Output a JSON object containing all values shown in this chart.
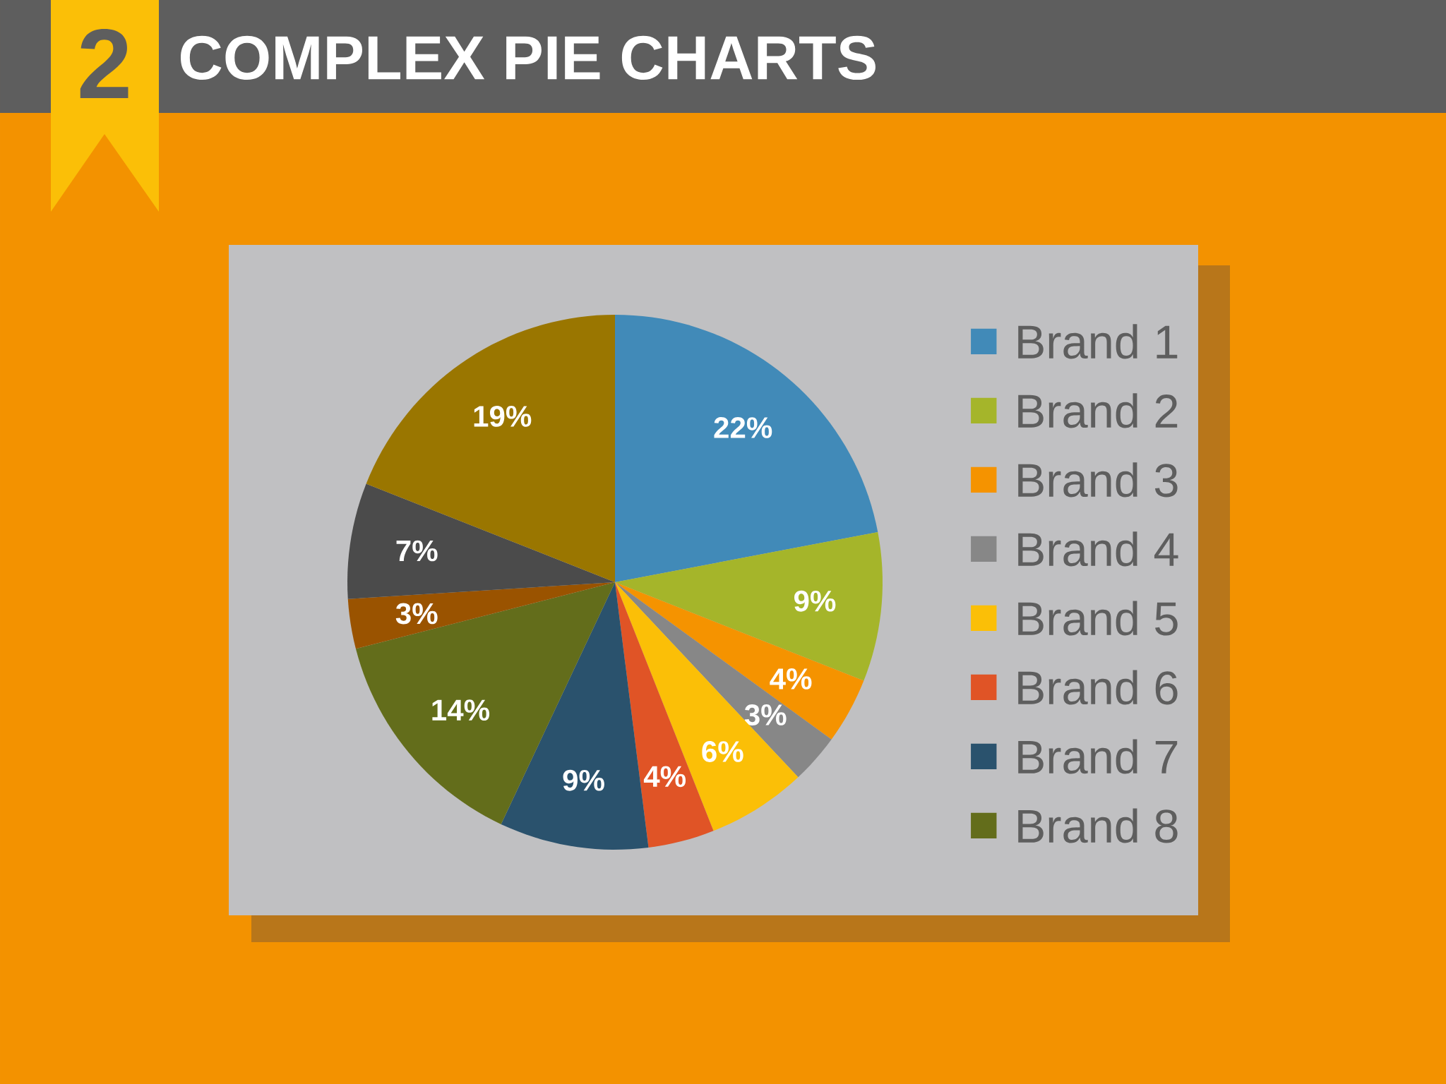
{
  "chart_data": {
    "type": "pie",
    "title": "COMPLEX PIE CHARTS",
    "annotations": [
      "2"
    ],
    "categories": [
      "Brand 1",
      "Brand 2",
      "Brand 3",
      "Brand 4",
      "Brand 5",
      "Brand 6",
      "Brand 7",
      "Brand 8",
      null,
      null,
      null
    ],
    "values": [
      22,
      9,
      4,
      3,
      6,
      4,
      9,
      14,
      3,
      7,
      19
    ],
    "value_labels": [
      "22%",
      "9%",
      "4%",
      "3%",
      "6%",
      "4%",
      "9%",
      "14%",
      "3%",
      "7%",
      "19%"
    ],
    "colors": [
      "#418ab8",
      "#a5b52a",
      "#f59300",
      "#878787",
      "#fbbf07",
      "#e05426",
      "#2a526d",
      "#636d1b",
      "#9a5300",
      "#4b4b4b",
      "#9a7600"
    ],
    "legend": "right"
  }
}
